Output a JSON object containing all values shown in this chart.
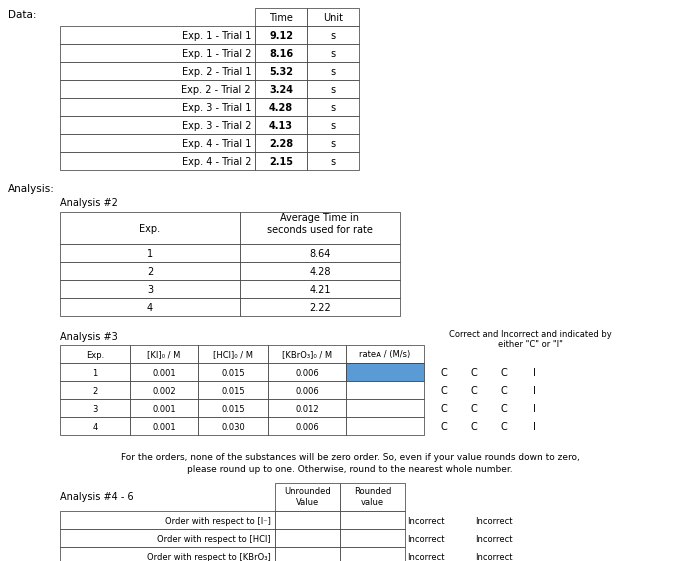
{
  "title_data": "Data:",
  "title_analysis": "Analysis:",
  "bg_color": "#ffffff",
  "data_table_rows": [
    [
      "Exp. 1 - Trial 1",
      "9.12",
      "s"
    ],
    [
      "Exp. 1 - Trial 2",
      "8.16",
      "s"
    ],
    [
      "Exp. 2 - Trial 1",
      "5.32",
      "s"
    ],
    [
      "Exp. 2 - Trial 2",
      "3.24",
      "s"
    ],
    [
      "Exp. 3 - Trial 1",
      "4.28",
      "s"
    ],
    [
      "Exp. 3 - Trial 2",
      "4.13",
      "s"
    ],
    [
      "Exp. 4 - Trial 1",
      "2.28",
      "s"
    ],
    [
      "Exp. 4 - Trial 2",
      "2.15",
      "s"
    ]
  ],
  "analysis2_rows": [
    [
      "1",
      "8.64"
    ],
    [
      "2",
      "4.28"
    ],
    [
      "3",
      "4.21"
    ],
    [
      "4",
      "2.22"
    ]
  ],
  "analysis3_rows": [
    [
      "1",
      "0.001",
      "0.015",
      "0.006",
      ""
    ],
    [
      "2",
      "0.002",
      "0.015",
      "0.006",
      ""
    ],
    [
      "3",
      "0.001",
      "0.015",
      "0.012",
      ""
    ],
    [
      "4",
      "0.001",
      "0.030",
      "0.006",
      ""
    ]
  ],
  "cci_labels": [
    [
      "C",
      "C",
      "C",
      "I"
    ],
    [
      "C",
      "C",
      "C",
      "I"
    ],
    [
      "C",
      "C",
      "C",
      "I"
    ],
    [
      "C",
      "C",
      "C",
      "I"
    ]
  ],
  "analysis46_rows": [
    [
      "Order with respect to [I⁻]",
      "",
      ""
    ],
    [
      "Order with respect to [HCl]",
      "",
      ""
    ],
    [
      "Order with respect to [KBrO₃]",
      "",
      ""
    ]
  ],
  "note_text_line1": "For the orders, none of the substances will be zero order. So, even if your value rounds down to zero,",
  "note_text_line2": "please round up to one. Otherwise, round to the nearest whole number.",
  "highlight_blue": "#5b9bd5",
  "font_size": 7.5,
  "small_font": 7
}
